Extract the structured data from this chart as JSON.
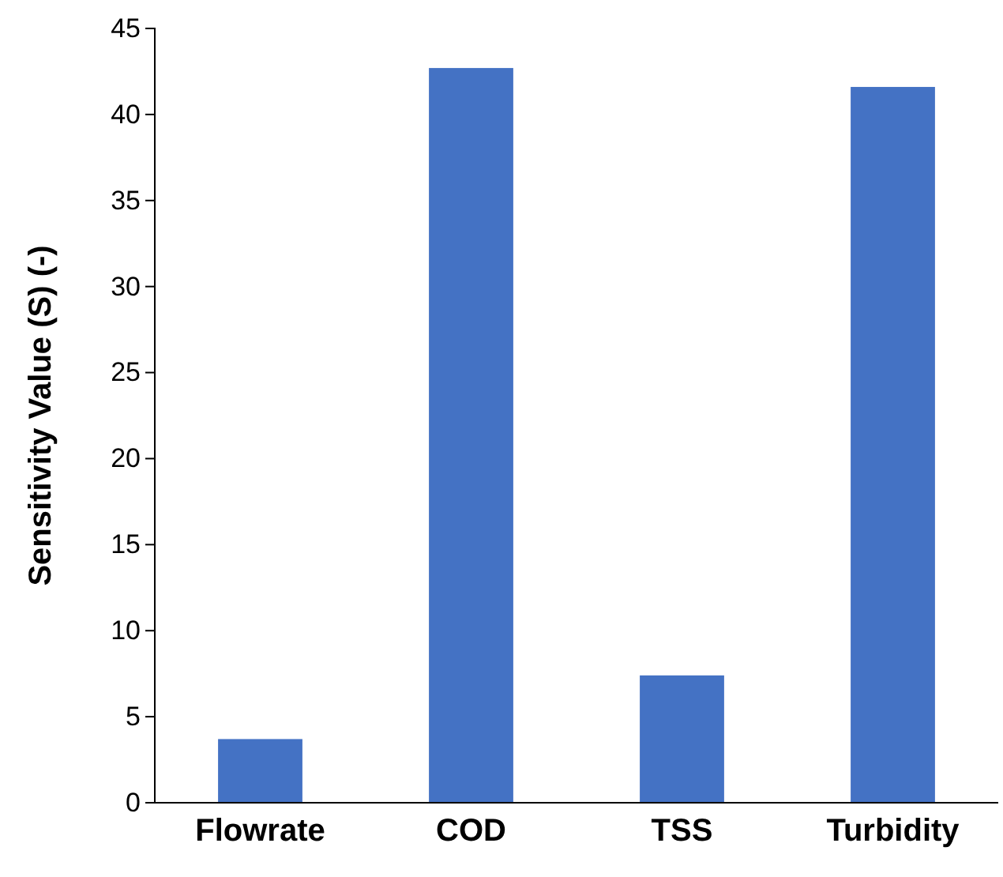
{
  "chart_data": {
    "type": "bar",
    "ylabel": "Sensitivity Value (S) (-)",
    "categories": [
      "Flowrate",
      "COD",
      "TSS",
      "Turbidity"
    ],
    "values": [
      3.7,
      42.7,
      7.4,
      41.6
    ],
    "color": "#4472c4",
    "ylim": [
      0,
      45
    ],
    "yticks": [
      0,
      5,
      10,
      15,
      20,
      25,
      30,
      35,
      40,
      45
    ],
    "grid": false
  }
}
